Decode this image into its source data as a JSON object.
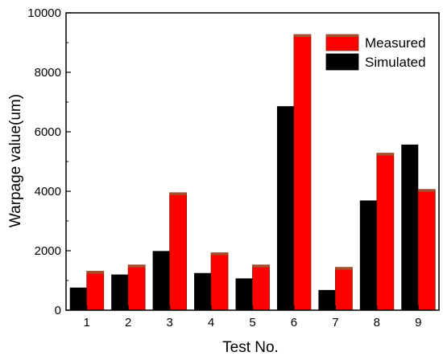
{
  "chart_data": {
    "type": "bar",
    "xlabel": "Test No.",
    "ylabel": "Warpage value(um)",
    "categories": [
      "1",
      "2",
      "3",
      "4",
      "5",
      "6",
      "7",
      "8",
      "9"
    ],
    "ylim": [
      0,
      10000
    ],
    "yticks": [
      0,
      2000,
      4000,
      6000,
      8000,
      10000
    ],
    "legend_position": "top-right",
    "series": [
      {
        "name": "Simulated",
        "color": "#000000",
        "values": [
          760,
          1200,
          1990,
          1250,
          1070,
          6860,
          680,
          3690,
          5570
        ]
      },
      {
        "name": "Measured",
        "color": "#ff0000",
        "values": [
          1310,
          1520,
          3950,
          1930,
          1520,
          9270,
          1440,
          5280,
          4060
        ]
      }
    ]
  }
}
